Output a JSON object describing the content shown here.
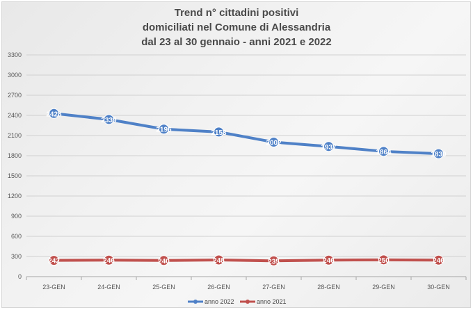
{
  "colors": {
    "anno_2022": "#4f81c7",
    "anno_2021": "#c0504d"
  },
  "chart_data": {
    "type": "line",
    "title_lines": [
      "Trend n° cittadini positivi",
      "domiciliati nel Comune di Alessandria",
      "dal 23 al 30 gennaio - anni 2021 e 2022"
    ],
    "categories": [
      "23-GEN",
      "24-GEN",
      "25-GEN",
      "26-GEN",
      "27-GEN",
      "28-GEN",
      "29-GEN",
      "30-GEN"
    ],
    "series": [
      {
        "name": "anno 2022",
        "values": [
          2428,
          2339,
          2196,
          2153,
          2002,
          1937,
          1864,
          1830
        ],
        "labels": [
          "2428",
          "2339",
          "2196",
          "2153",
          "2002",
          "1937",
          "1864",
          "1830"
        ]
      },
      {
        "name": "anno 2021",
        "values": [
          242,
          246,
          240,
          248,
          235,
          246,
          250,
          246
        ],
        "labels": [
          "242",
          "246",
          "240",
          "248",
          "235",
          "246",
          "250",
          "246"
        ]
      }
    ],
    "y_ticks": [
      "0",
      "300",
      "600",
      "900",
      "1200",
      "1500",
      "1800",
      "2100",
      "2400",
      "2700",
      "3000",
      "3300"
    ],
    "ylim": [
      0,
      3300
    ],
    "grid": true,
    "legend_position": "bottom"
  }
}
